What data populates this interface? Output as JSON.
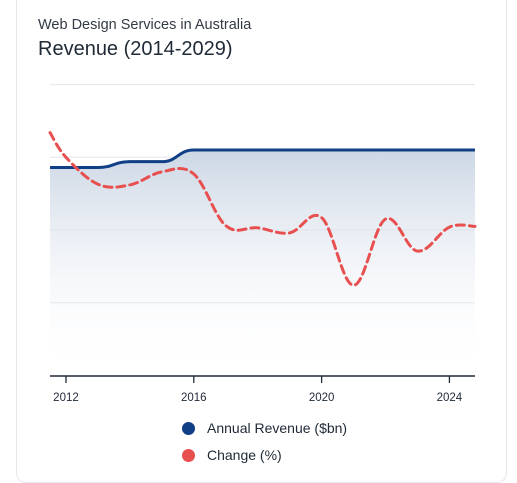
{
  "header": {
    "subtitle": "Web Design Services in Australia",
    "title": "Revenue (2014-2029)"
  },
  "colors": {
    "revenue": "#103f86",
    "change": "#e85050",
    "area_top": "#c9d4e3",
    "grid": "#e3e6ea",
    "axis": "#1f2a36"
  },
  "chart_data": {
    "type": "line",
    "title": "Revenue (2014-2029)",
    "xlim": [
      2011.5,
      2024.8
    ],
    "x_ticks": [
      2012,
      2016,
      2020,
      2024
    ],
    "gridlines": true,
    "legend_position": "bottom",
    "series": [
      {
        "name": "Annual Revenue ($bn)",
        "style": "solid-area",
        "points": [
          [
            2011.5,
            0.86
          ],
          [
            2012,
            0.86
          ],
          [
            2013,
            0.86
          ],
          [
            2014,
            0.94
          ],
          [
            2015,
            0.94
          ],
          [
            2016,
            1.1
          ],
          [
            2017,
            1.1
          ],
          [
            2018,
            1.1
          ],
          [
            2019,
            1.1
          ],
          [
            2020,
            1.1
          ],
          [
            2021,
            1.1
          ],
          [
            2022,
            1.1
          ],
          [
            2023,
            1.1
          ],
          [
            2024,
            1.1
          ],
          [
            2024.8,
            1.1
          ]
        ]
      },
      {
        "name": "Change (%)",
        "style": "dashed",
        "points": [
          [
            2011.5,
            1.34
          ],
          [
            2012,
            1.0
          ],
          [
            2013,
            0.63
          ],
          [
            2014,
            0.62
          ],
          [
            2015,
            0.8
          ],
          [
            2016,
            0.77
          ],
          [
            2017,
            0.06
          ],
          [
            2018,
            0.03
          ],
          [
            2019,
            -0.04
          ],
          [
            2020,
            0.17
          ],
          [
            2021,
            -0.76
          ],
          [
            2022,
            0.15
          ],
          [
            2023,
            -0.29
          ],
          [
            2024,
            0.04
          ],
          [
            2024.8,
            0.05
          ]
        ]
      }
    ]
  },
  "legend": {
    "items": [
      {
        "label": "Annual Revenue ($bn)",
        "color": "#103f86"
      },
      {
        "label": "Change (%)",
        "color": "#e85050"
      }
    ]
  }
}
